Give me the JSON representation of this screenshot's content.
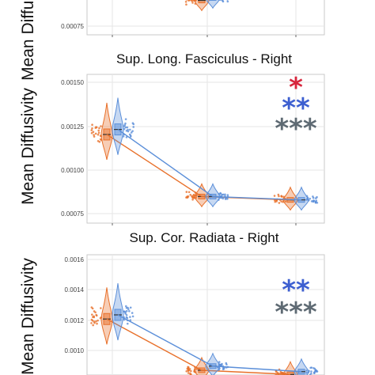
{
  "colors": {
    "orange": "#e8702a",
    "blue": "#5b8fd9",
    "red": "#d7263d",
    "star_blue": "#3d5fd0",
    "star_gray": "#5e6a73",
    "grid": "#e6e6e6",
    "panel_border": "#c9c9c9"
  },
  "chart_data": [
    {
      "type": "violin",
      "title": "",
      "ylabel": "Mean Diffusivity",
      "yticks": [
        "0.00075"
      ],
      "ylim": [
        0.0007,
        0.00095
      ],
      "categories": [
        "",
        "",
        ""
      ],
      "series": [
        {
          "name": "",
          "color": "orange",
          "medians": [
            null,
            0.00082,
            null
          ]
        },
        {
          "name": "",
          "color": "blue",
          "medians": [
            null,
            0.00083,
            null
          ]
        }
      ],
      "annotations": []
    },
    {
      "type": "violin",
      "title": "Sup. Long. Fasciculus - Right",
      "ylabel": "Mean Diffusivity",
      "yticks": [
        "0.00150",
        "0.00125",
        "0.00100",
        "0.00075"
      ],
      "ylim": [
        0.00072,
        0.00155
      ],
      "categories": [
        "",
        "",
        ""
      ],
      "series": [
        {
          "name": "",
          "color": "orange",
          "medians": [
            0.00122,
            0.00085,
            0.00083
          ]
        },
        {
          "name": "",
          "color": "blue",
          "medians": [
            0.00125,
            0.00085,
            0.00083
          ]
        }
      ],
      "annotations": [
        {
          "text": "*",
          "color": "red"
        },
        {
          "text": "**",
          "color": "star_blue"
        },
        {
          "text": "***",
          "color": "star_gray"
        }
      ]
    },
    {
      "type": "violin",
      "title": "Sup. Cor. Radiata - Right",
      "ylabel": "Mean Diffusivity",
      "yticks": [
        "0.0016",
        "0.0014",
        "0.0012",
        "0.0010"
      ],
      "ylim": [
        0.00085,
        0.00165
      ],
      "categories": [
        "",
        "",
        ""
      ],
      "series": [
        {
          "name": "",
          "color": "orange",
          "medians": [
            0.00122,
            0.00085,
            0.00082
          ]
        },
        {
          "name": "",
          "color": "blue",
          "medians": [
            0.00125,
            0.00088,
            0.00084
          ]
        }
      ],
      "annotations": [
        {
          "text": "**",
          "color": "star_blue"
        },
        {
          "text": "***",
          "color": "star_gray"
        }
      ]
    }
  ]
}
